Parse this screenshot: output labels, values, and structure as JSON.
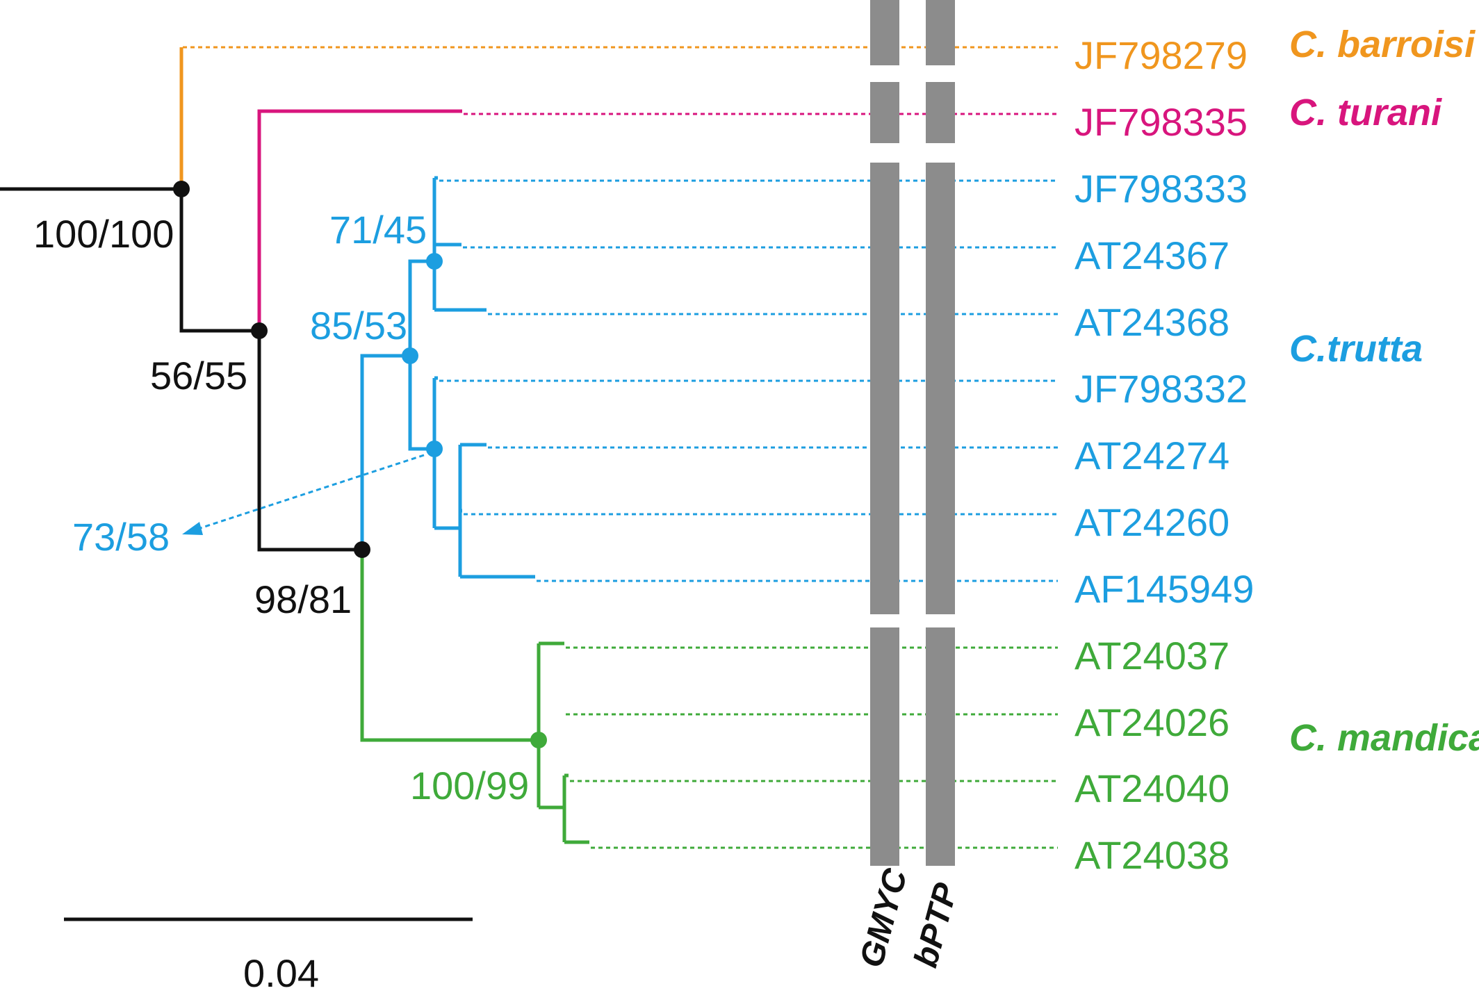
{
  "colors": {
    "black": "#111111",
    "barroisi": "#f0961e",
    "turani": "#d8157d",
    "trutta": "#1c9ee0",
    "mandica": "#3faa3a",
    "bar": "#8c8c8c"
  },
  "tips": [
    {
      "label": "JF798279",
      "clade": "barroisi"
    },
    {
      "label": "JF798335",
      "clade": "turani"
    },
    {
      "label": "JF798333",
      "clade": "trutta"
    },
    {
      "label": "AT24367",
      "clade": "trutta"
    },
    {
      "label": "AT24368",
      "clade": "trutta"
    },
    {
      "label": "JF798332",
      "clade": "trutta"
    },
    {
      "label": "AT24274",
      "clade": "trutta"
    },
    {
      "label": "AT24260",
      "clade": "trutta"
    },
    {
      "label": "AF145949",
      "clade": "trutta"
    },
    {
      "label": "AT24037",
      "clade": "mandica"
    },
    {
      "label": "AT24026",
      "clade": "mandica"
    },
    {
      "label": "AT24040",
      "clade": "mandica"
    },
    {
      "label": "AT24038",
      "clade": "mandica"
    }
  ],
  "species": [
    {
      "label": "C. barroisi",
      "clade": "barroisi"
    },
    {
      "label": "C. turani",
      "clade": "turani"
    },
    {
      "label": "C.trutta",
      "clade": "trutta"
    },
    {
      "label": "C. mandica",
      "clade": "mandica"
    }
  ],
  "support": [
    {
      "label": "100/100",
      "clade": "black"
    },
    {
      "label": "56/55",
      "clade": "black"
    },
    {
      "label": "98/81",
      "clade": "black"
    },
    {
      "label": "71/45",
      "clade": "trutta"
    },
    {
      "label": "85/53",
      "clade": "trutta"
    },
    {
      "label": "73/58",
      "clade": "trutta"
    },
    {
      "label": "100/99",
      "clade": "mandica"
    }
  ],
  "delimitation_columns": [
    "GMYC",
    "bPTP"
  ],
  "delimitation_groups": 4,
  "scale_bar": {
    "label": "0.04"
  }
}
